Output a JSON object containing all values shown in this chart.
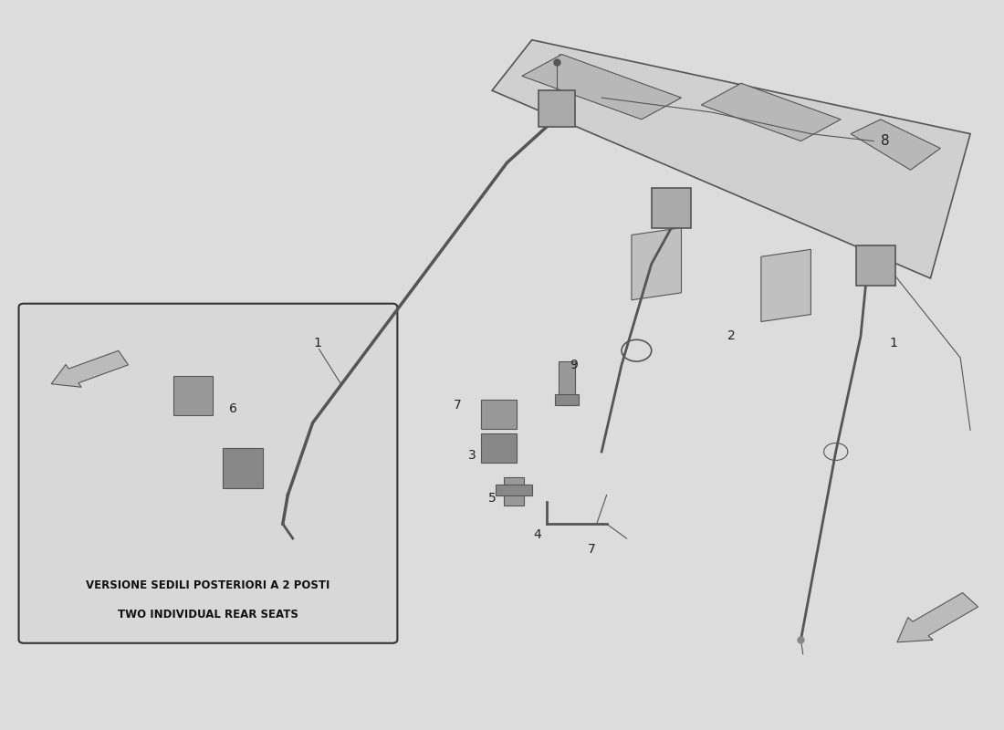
{
  "bg_color": "#dcdcdc",
  "line_color": "#555555",
  "text_color": "#222222",
  "bold_text_color": "#111111",
  "inset_text_line1": "VERSIONE SEDILI POSTERIORI A 2 POSTI",
  "inset_text_line2": "TWO INDIVIDUAL REAR SEATS"
}
